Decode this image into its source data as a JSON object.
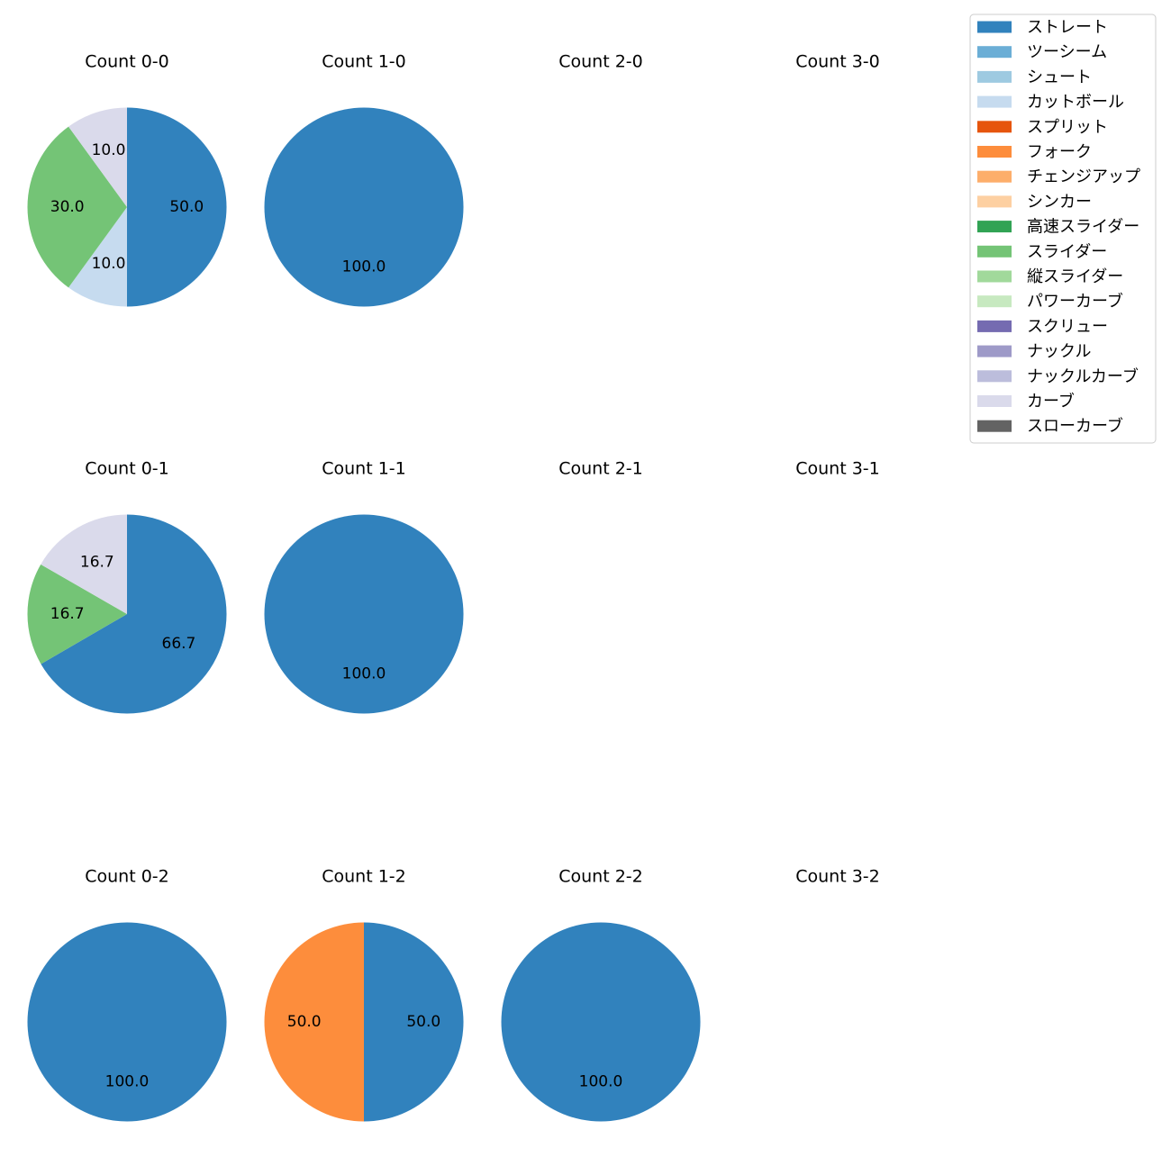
{
  "chart_data": {
    "type": "pie",
    "legend_position": "top-right",
    "legend": [
      {
        "label": "ストレート",
        "color": "#3182bd"
      },
      {
        "label": "ツーシーム",
        "color": "#6baed6"
      },
      {
        "label": "シュート",
        "color": "#9ecae1"
      },
      {
        "label": "カットボール",
        "color": "#c6dbef"
      },
      {
        "label": "スプリット",
        "color": "#e6550d"
      },
      {
        "label": "フォーク",
        "color": "#fd8d3c"
      },
      {
        "label": "チェンジアップ",
        "color": "#fdae6b"
      },
      {
        "label": "シンカー",
        "color": "#fdd0a2"
      },
      {
        "label": "高速スライダー",
        "color": "#31a354"
      },
      {
        "label": "スライダー",
        "color": "#74c476"
      },
      {
        "label": "縦スライダー",
        "color": "#a1d99b"
      },
      {
        "label": "パワーカーブ",
        "color": "#c7e9c0"
      },
      {
        "label": "スクリュー",
        "color": "#756bb1"
      },
      {
        "label": "ナックル",
        "color": "#9e9ac8"
      },
      {
        "label": "ナックルカーブ",
        "color": "#bcbddc"
      },
      {
        "label": "カーブ",
        "color": "#dadaeb"
      },
      {
        "label": "スローカーブ",
        "color": "#636363"
      }
    ],
    "panels": [
      {
        "title": "Count 0-0",
        "slices": [
          {
            "pitch": "ストレート",
            "value": 50.0
          },
          {
            "pitch": "カットボール",
            "value": 10.0
          },
          {
            "pitch": "スライダー",
            "value": 30.0
          },
          {
            "pitch": "カーブ",
            "value": 10.0
          }
        ]
      },
      {
        "title": "Count 1-0",
        "slices": [
          {
            "pitch": "ストレート",
            "value": 100.0
          }
        ]
      },
      {
        "title": "Count 2-0",
        "slices": []
      },
      {
        "title": "Count 3-0",
        "slices": []
      },
      {
        "title": "Count 0-1",
        "slices": [
          {
            "pitch": "ストレート",
            "value": 66.7
          },
          {
            "pitch": "スライダー",
            "value": 16.7
          },
          {
            "pitch": "カーブ",
            "value": 16.7
          }
        ]
      },
      {
        "title": "Count 1-1",
        "slices": [
          {
            "pitch": "ストレート",
            "value": 100.0
          }
        ]
      },
      {
        "title": "Count 2-1",
        "slices": []
      },
      {
        "title": "Count 3-1",
        "slices": []
      },
      {
        "title": "Count 0-2",
        "slices": [
          {
            "pitch": "ストレート",
            "value": 100.0
          }
        ]
      },
      {
        "title": "Count 1-2",
        "slices": [
          {
            "pitch": "ストレート",
            "value": 50.0
          },
          {
            "pitch": "フォーク",
            "value": 50.0
          }
        ]
      },
      {
        "title": "Count 2-2",
        "slices": [
          {
            "pitch": "ストレート",
            "value": 100.0
          }
        ]
      },
      {
        "title": "Count 3-2",
        "slices": []
      }
    ]
  }
}
